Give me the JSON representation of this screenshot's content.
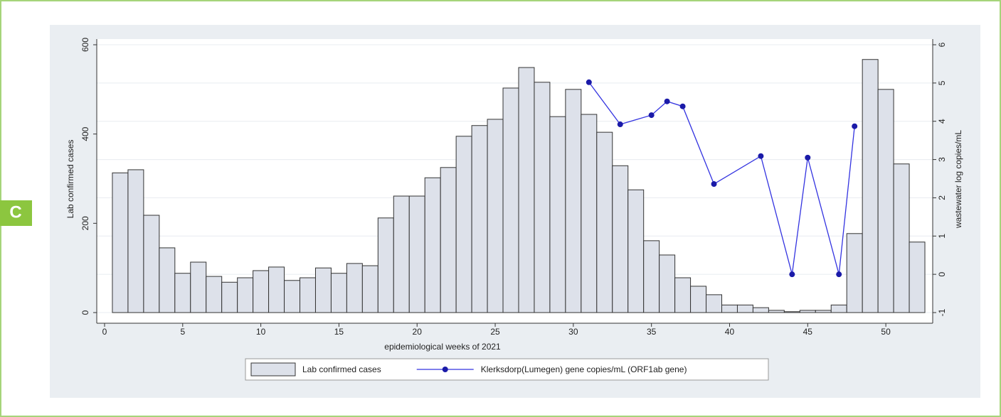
{
  "panel_label": "C",
  "chart_data": {
    "type": "bar",
    "xlabel": "epidemiological weeks of 2021",
    "ylabel": "Lab confirmed cases",
    "y2label": "wastewater log copies/mL",
    "xlim": [
      -0.5,
      53
    ],
    "xticks": [
      0,
      5,
      10,
      15,
      20,
      25,
      30,
      35,
      40,
      45,
      50
    ],
    "ylim": [
      0,
      600
    ],
    "yticks": [
      0,
      200,
      400,
      600
    ],
    "y2lim": [
      -1,
      6
    ],
    "y2ticks": [
      -1,
      0,
      1,
      2,
      3,
      4,
      5,
      6
    ],
    "grid": "y2",
    "legend": "bottom",
    "series": [
      {
        "name": "Lab confirmed cases",
        "type": "bar",
        "color": "#dde1ea",
        "x": [
          1,
          2,
          3,
          4,
          5,
          6,
          7,
          8,
          9,
          10,
          11,
          12,
          13,
          14,
          15,
          16,
          17,
          18,
          19,
          20,
          21,
          22,
          23,
          24,
          25,
          26,
          27,
          28,
          29,
          30,
          31,
          32,
          33,
          34,
          35,
          36,
          37,
          38,
          39,
          40,
          41,
          42,
          43,
          44,
          45,
          46,
          47,
          48,
          49,
          50,
          51,
          52
        ],
        "values": [
          313,
          320,
          218,
          145,
          88,
          113,
          81,
          68,
          78,
          94,
          102,
          72,
          78,
          100,
          88,
          110,
          105,
          212,
          261,
          261,
          302,
          325,
          395,
          419,
          433,
          503,
          549,
          516,
          439,
          500,
          444,
          404,
          329,
          275,
          161,
          129,
          78,
          59,
          40,
          17,
          17,
          11,
          5,
          2,
          5,
          5,
          17,
          177,
          567,
          500,
          333,
          158
        ]
      },
      {
        "name": "Klerksdorp(Lumegen) gene copies/mL (ORF1ab gene)",
        "type": "line",
        "color": "#3333e0",
        "axis": "y2",
        "x": [
          31,
          33,
          35,
          36,
          37,
          39,
          42,
          44,
          45,
          47,
          48
        ],
        "values": [
          5.02,
          3.92,
          4.16,
          4.52,
          4.39,
          2.36,
          3.09,
          0,
          3.05,
          0,
          3.87
        ]
      }
    ]
  }
}
